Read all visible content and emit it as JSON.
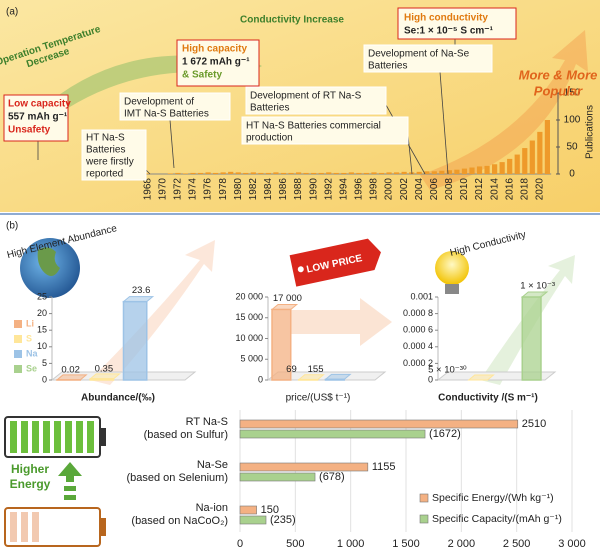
{
  "chart_data": [
    {
      "type": "bar",
      "panel_label": "(a)",
      "y_label": "Publications",
      "y_axis_side": "right",
      "color": "#ee9a2a",
      "categories": [
        "1968",
        null,
        "1970",
        null,
        "1972",
        null,
        "1974",
        null,
        "1976",
        null,
        "1978",
        null,
        "1980",
        null,
        "1982",
        null,
        "1984",
        null,
        "1986",
        null,
        "1988",
        null,
        "1990",
        null,
        "1992",
        null,
        "1994",
        null,
        "1996",
        null,
        "1998",
        null,
        "2000",
        null,
        "2002",
        null,
        "2004",
        null,
        "2006",
        null,
        "2008",
        null,
        "2010",
        null,
        "2012",
        null,
        "2014",
        null,
        "2016",
        null,
        "2018",
        null,
        "2020",
        null
      ],
      "values": [
        1,
        0,
        0,
        1,
        2,
        1,
        2,
        2,
        3,
        2,
        3,
        4,
        3,
        2,
        3,
        2,
        2,
        3,
        2,
        2,
        3,
        2,
        2,
        2,
        3,
        2,
        2,
        3,
        2,
        2,
        3,
        2,
        3,
        3,
        4,
        3,
        4,
        5,
        5,
        6,
        7,
        8,
        10,
        12,
        14,
        15,
        18,
        22,
        28,
        36,
        48,
        62,
        78,
        100
      ],
      "ylim": [
        0,
        150
      ],
      "yticks": [
        0,
        50,
        100,
        150
      ],
      "annotations": [
        {
          "lines": [
            "Operation Temperature",
            "Decrease"
          ]
        },
        {
          "lines": [
            "Conductivity Increase"
          ]
        },
        {
          "lines": [
            "Low capacity",
            "557 mAh g⁻¹",
            "Unsafety"
          ]
        },
        {
          "lines": [
            "High capacity",
            "1 672 mAh g⁻¹",
            "& Safety"
          ]
        },
        {
          "lines": [
            "High conductivity",
            "Se:1 × 10⁻⁵ S cm⁻¹"
          ]
        },
        {
          "lines": [
            "Development of Na-Se",
            "Batteries"
          ]
        },
        {
          "lines": [
            "More & More",
            "Popular"
          ]
        },
        {
          "lines": [
            "Development of RT Na-S",
            "Batteries"
          ]
        },
        {
          "lines": [
            "Development of",
            "IMT Na-S Batteries"
          ]
        },
        {
          "lines": [
            "HT Na-S Batteries commercial",
            "production"
          ]
        },
        {
          "lines": [
            "HT Na-S",
            "Batteries",
            "were firstly",
            "reported"
          ]
        }
      ]
    },
    {
      "type": "bar3d",
      "panel_label": "(b)",
      "header": "High Element Abundance",
      "x_label": "Abundance/(‰)",
      "categories": [
        "Li",
        "S",
        "Na",
        "Se"
      ],
      "colors": [
        "#f4b183",
        "#ffe699",
        "#9dc3e6",
        "#a9d18e"
      ],
      "values": [
        0.02,
        0.35,
        23.6,
        null
      ],
      "ylim": [
        0,
        25
      ],
      "yticks": [
        0,
        5,
        10,
        15,
        20,
        25
      ]
    },
    {
      "type": "bar3d",
      "header": "LOW PRICE",
      "x_label": "price/(US$ t⁻¹)",
      "values": [
        17000,
        69,
        155,
        null
      ],
      "value_labels": [
        "17 000",
        "69",
        "155",
        null
      ],
      "ylim": [
        0,
        20000
      ],
      "yticks": [
        0,
        {
          "value": 5000,
          "label": "5 000"
        },
        {
          "value": 10000,
          "label": "10 000"
        },
        {
          "value": 15000,
          "label": "15 000"
        },
        {
          "value": 20000,
          "label": "20 000"
        }
      ]
    },
    {
      "type": "bar3d",
      "header": "High Conductivity",
      "x_label": "Conductivity /(S m⁻¹)",
      "values": [
        null,
        5e-30,
        null,
        0.001
      ],
      "value_labels": [
        null,
        "5 × 10⁻³⁰",
        null,
        "1 × 10⁻³"
      ],
      "ylim": [
        0,
        0.001
      ],
      "yticks": [
        0,
        {
          "value": 0.0002,
          "label": "0.000 2"
        },
        {
          "value": 0.0004,
          "label": "0.000 4"
        },
        {
          "value": 0.0006,
          "label": "0.000 6"
        },
        {
          "value": 0.0008,
          "label": "0.000 8"
        },
        0.001
      ]
    },
    {
      "type": "hbar",
      "categories": [
        [
          "RT Na-S",
          "(based on Sulfur)"
        ],
        [
          "Na-Se",
          "(based on Selenium)"
        ],
        [
          "Na-ion",
          "(based on NaCoO₂)"
        ]
      ],
      "series": [
        {
          "name": "Specific Energy/(Wh kg⁻¹)",
          "color": "#f4b183",
          "values": [
            2510,
            1155,
            150
          ]
        },
        {
          "name": "Specific Capacity/(mAh g⁻¹)",
          "color": "#a9d18e",
          "values": [
            1672,
            678,
            235
          ],
          "value_labels": [
            "(1672)",
            "(678)",
            "(235)"
          ]
        }
      ],
      "xlim": [
        0,
        3000
      ],
      "xticks": [
        0,
        500,
        {
          "value": 1000,
          "label": "1 000"
        },
        {
          "value": 1500,
          "label": "1 500"
        },
        {
          "value": 2000,
          "label": "2 000"
        },
        {
          "value": 2500,
          "label": "2 500"
        },
        {
          "value": 3000,
          "label": "3 000"
        }
      ],
      "grid": true,
      "legend": "lower-right",
      "annotations": [
        {
          "lines": [
            "Higher",
            "Energy"
          ]
        }
      ]
    }
  ]
}
